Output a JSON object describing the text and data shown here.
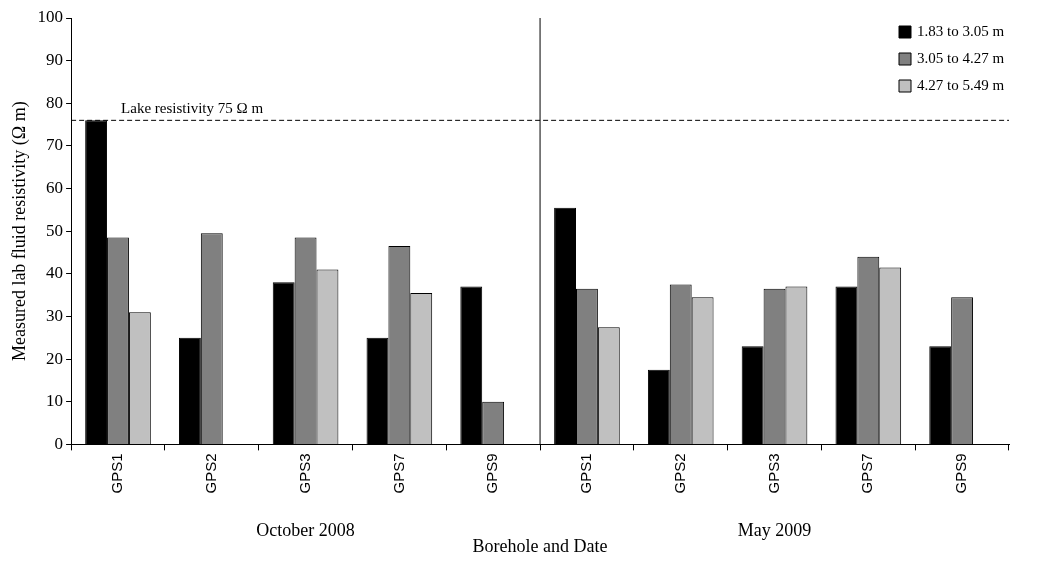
{
  "chart_data": {
    "type": "bar",
    "ylabel": "Measured lab fluid resistivity (Ω m)",
    "xlabel": "Borehole and Date",
    "categories": [
      "GPS1",
      "GPS2",
      "GPS3",
      "GPS7",
      "GPS9",
      "GPS1",
      "GPS2",
      "GPS3",
      "GPS7",
      "GPS9"
    ],
    "series": [
      {
        "name": "1.83 to 3.05 m",
        "color": "#000000",
        "values": [
          76,
          25,
          38,
          25,
          37,
          55.5,
          17.5,
          23,
          37,
          23
        ]
      },
      {
        "name": "3.05 to 4.27 m",
        "color": "#808080",
        "values": [
          48.5,
          49.5,
          48.5,
          46.5,
          10,
          36.5,
          37.5,
          36.5,
          44,
          34.5
        ]
      },
      {
        "name": "4.27 to 5.49 m",
        "color": "#c0c0c0",
        "values": [
          31,
          null,
          41,
          35.5,
          null,
          27.5,
          34.5,
          37,
          41.5,
          null
        ]
      }
    ],
    "ylim": [
      0,
      100
    ],
    "yticks": [
      0,
      10,
      20,
      30,
      40,
      50,
      60,
      70,
      80,
      90,
      100
    ],
    "ref_lines": [
      {
        "axis": "y",
        "value": 76,
        "label": "Lake resistivity 75 Ω m",
        "line_style": "dashed"
      }
    ],
    "annotations": [
      "October 2008",
      "May 2009"
    ],
    "grid": false,
    "legend": "top right"
  }
}
